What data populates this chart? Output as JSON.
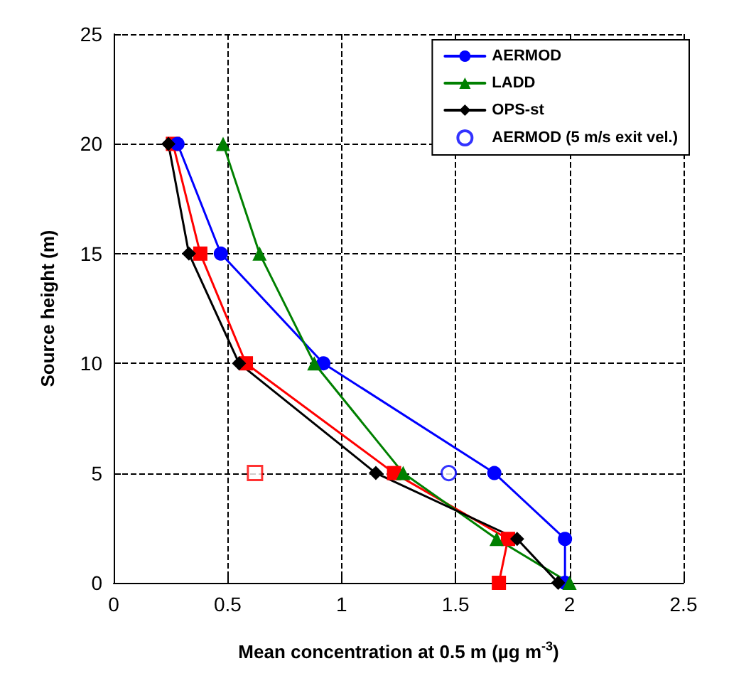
{
  "chart_data": {
    "type": "line",
    "xlabel": "Mean concentration at 0.5 m (µg m$^{-3}$)",
    "ylabel": "Source height (m)",
    "xlim": [
      0,
      2.5
    ],
    "xticks": [
      0,
      0.5,
      1,
      1.5,
      2,
      2.5
    ],
    "ylim": [
      0,
      25
    ],
    "yticks": [
      0,
      5,
      10,
      15,
      20,
      25
    ],
    "grid": true,
    "legend": "top right",
    "line_style": "solid",
    "series": [
      {
        "color": "#ff0000",
        "marker": "square",
        "x": [
          1.69,
          1.73,
          1.23,
          0.58,
          0.38,
          0.26
        ],
        "values": [
          0,
          2,
          5,
          10,
          15,
          20
        ]
      },
      {
        "name": "AERMOD",
        "color": "#0000ff",
        "marker": "circle",
        "x": [
          1.98,
          1.98,
          1.67,
          0.92,
          0.47,
          0.28
        ],
        "values": [
          0,
          2,
          5,
          10,
          15,
          20
        ]
      },
      {
        "name": "LADD",
        "color": "#008000",
        "marker": "triangle",
        "x": [
          2.0,
          1.68,
          1.27,
          0.88,
          0.64,
          0.48
        ],
        "values": [
          0,
          2,
          5,
          10,
          15,
          20
        ]
      },
      {
        "name": "OPS-st",
        "color": "#000000",
        "marker": "diamond",
        "x": [
          1.95,
          1.77,
          1.15,
          0.55,
          0.33,
          0.24
        ],
        "values": [
          0,
          2,
          5,
          10,
          15,
          20
        ]
      },
      {
        "type": "scatter",
        "color": "#ff0000",
        "marker": "square",
        "x": [
          0.62
        ],
        "values": [
          5
        ]
      },
      {
        "name": "AERMOD (5 m/s exit vel.)",
        "type": "scatter",
        "color": "#0000ff",
        "marker": "circle",
        "x": [
          1.47
        ],
        "values": [
          5
        ]
      }
    ]
  }
}
